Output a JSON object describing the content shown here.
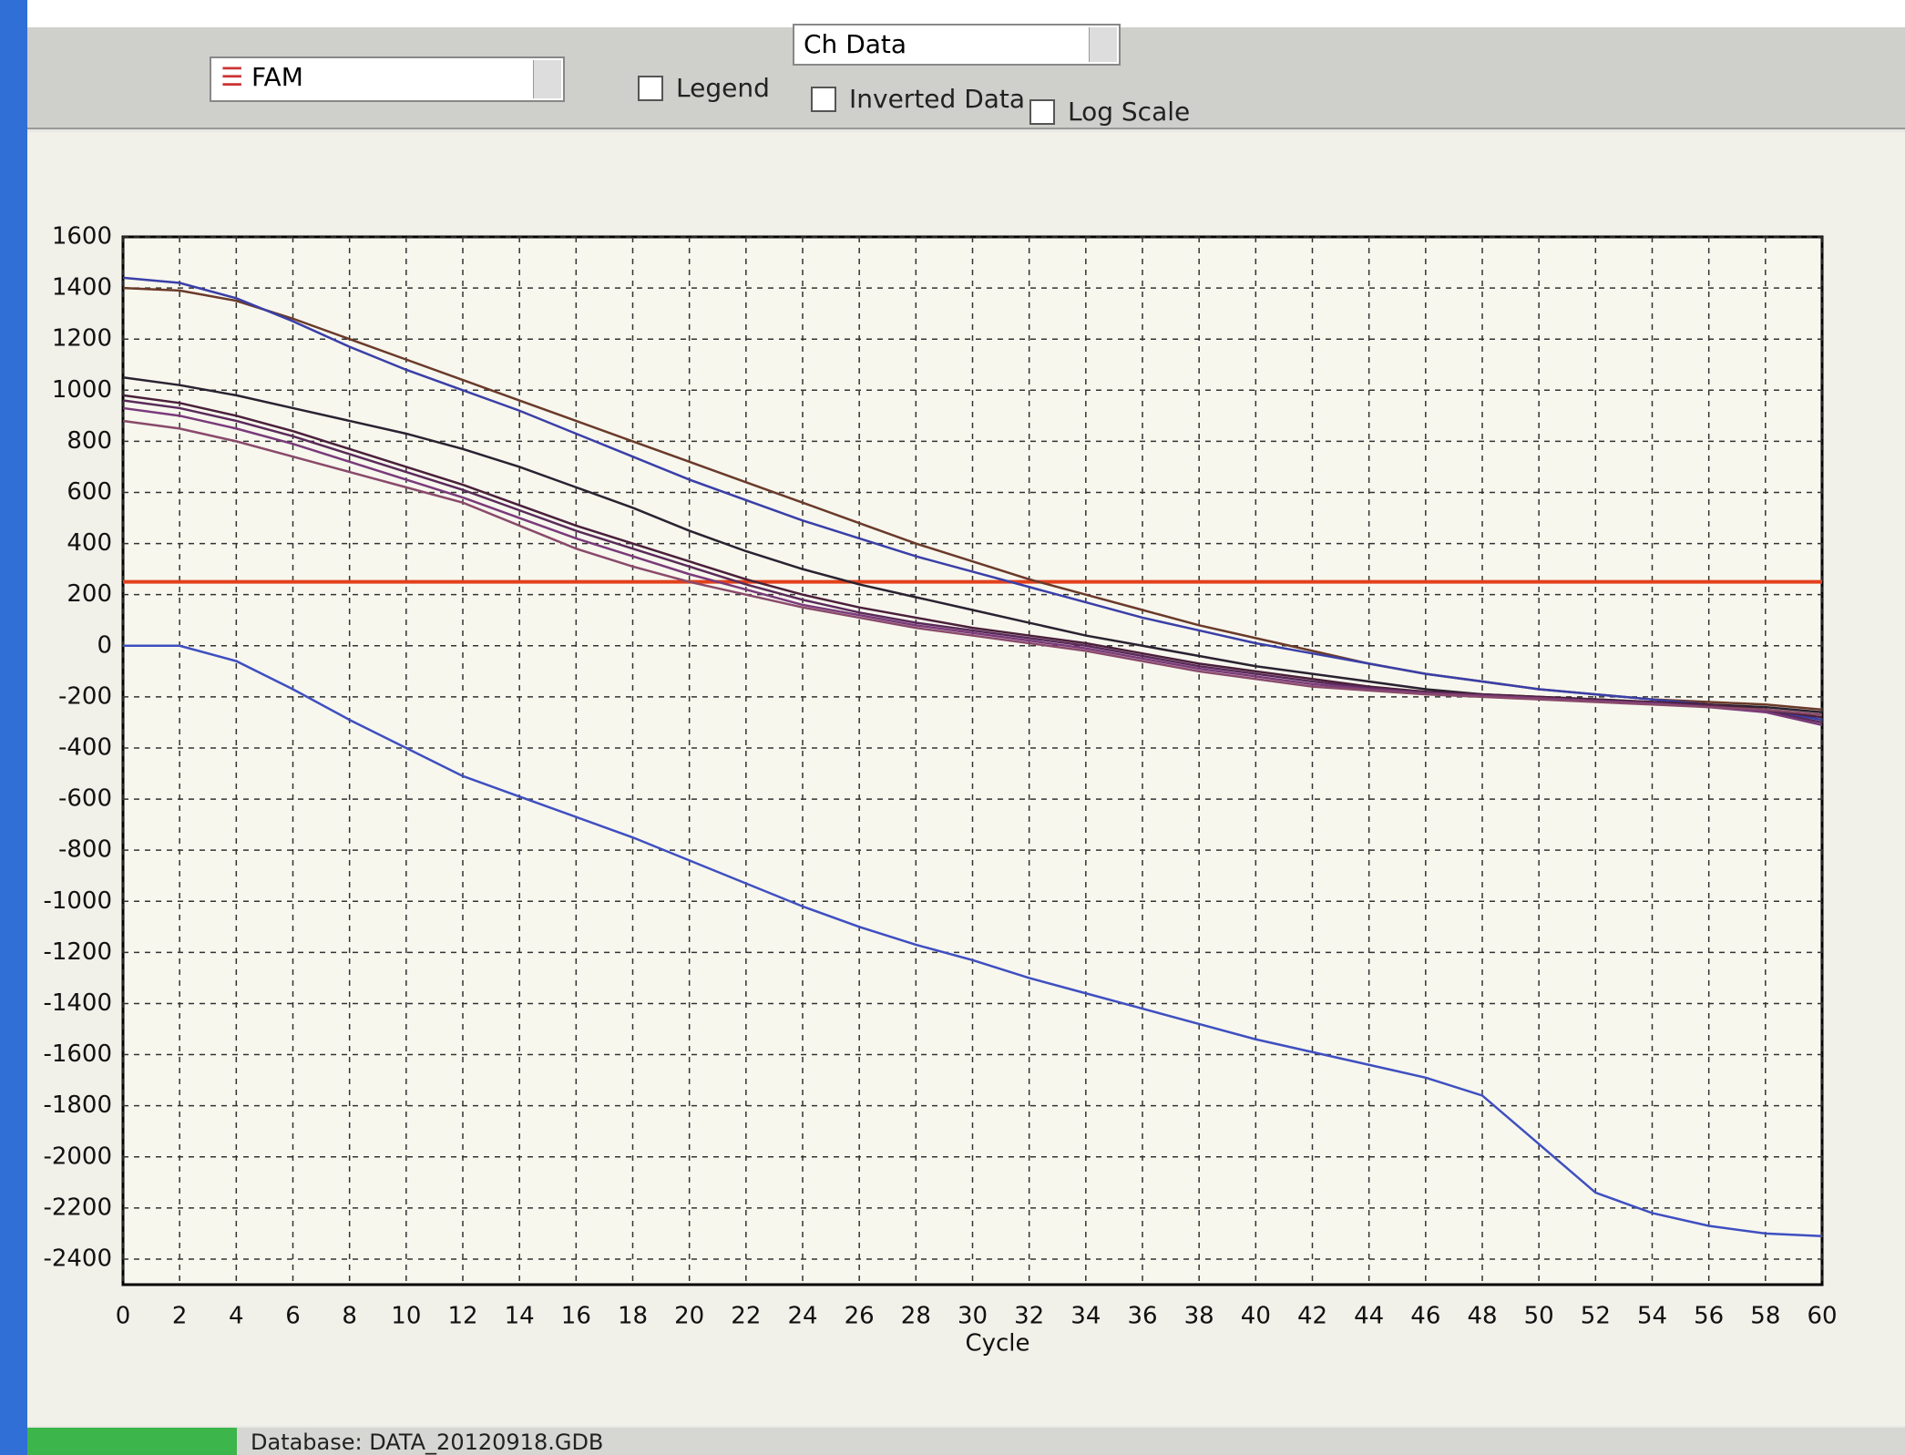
{
  "toolbar": {
    "channel": "FAM",
    "data_view": "Ch Data",
    "checkboxes": [
      "Legend",
      "Inverted Data",
      "Log Scale"
    ]
  },
  "status_bar": "Database: DATA_20120918.GDB",
  "chart_data": {
    "type": "line",
    "x_label": "Cycle",
    "x": [
      0,
      2,
      4,
      6,
      8,
      10,
      12,
      14,
      16,
      18,
      20,
      22,
      24,
      26,
      28,
      30,
      32,
      34,
      36,
      38,
      40,
      42,
      44,
      46,
      48,
      50,
      52,
      54,
      56,
      58,
      60
    ],
    "xlim": [
      0,
      60
    ],
    "xticks": [
      0,
      2,
      4,
      6,
      8,
      10,
      12,
      14,
      16,
      18,
      20,
      22,
      24,
      26,
      28,
      30,
      32,
      34,
      36,
      38,
      40,
      42,
      44,
      46,
      48,
      50,
      52,
      54,
      56,
      58,
      60
    ],
    "ylim": [
      -2500,
      1600
    ],
    "yticks": [
      -2400,
      -2200,
      -2000,
      -1800,
      -1600,
      -1400,
      -1200,
      -1000,
      -800,
      -600,
      -400,
      -200,
      0,
      200,
      400,
      600,
      800,
      1000,
      1200,
      1400,
      1600
    ],
    "grid": true,
    "threshold": {
      "value": 250,
      "color": "#e2401c"
    },
    "series": [
      {
        "color": "#6b3a2a",
        "values": [
          1400,
          1390,
          1350,
          1280,
          1200,
          1120,
          1040,
          960,
          880,
          800,
          720,
          640,
          560,
          480,
          400,
          330,
          260,
          200,
          140,
          80,
          30,
          -20,
          -70,
          -110,
          -140,
          -170,
          -190,
          -210,
          -220,
          -230,
          -250
        ]
      },
      {
        "color": "#3a3fa8",
        "values": [
          1440,
          1420,
          1360,
          1270,
          1170,
          1080,
          1000,
          920,
          830,
          740,
          650,
          570,
          490,
          420,
          350,
          290,
          230,
          170,
          110,
          60,
          10,
          -30,
          -70,
          -110,
          -140,
          -170,
          -190,
          -210,
          -230,
          -250,
          -290
        ]
      },
      {
        "color": "#2a2230",
        "values": [
          1050,
          1020,
          980,
          930,
          880,
          830,
          770,
          700,
          620,
          540,
          450,
          370,
          300,
          240,
          190,
          140,
          90,
          40,
          0,
          -40,
          -80,
          -110,
          -140,
          -170,
          -190,
          -200,
          -210,
          -220,
          -230,
          -240,
          -260
        ]
      },
      {
        "color": "#4a1f3a",
        "values": [
          980,
          950,
          900,
          840,
          770,
          700,
          630,
          550,
          470,
          400,
          330,
          260,
          200,
          150,
          110,
          70,
          40,
          10,
          -30,
          -70,
          -100,
          -130,
          -160,
          -180,
          -190,
          -200,
          -210,
          -220,
          -230,
          -250,
          -280
        ]
      },
      {
        "color": "#5a2a5a",
        "values": [
          960,
          930,
          880,
          820,
          750,
          680,
          610,
          530,
          450,
          380,
          310,
          240,
          180,
          130,
          90,
          60,
          30,
          0,
          -40,
          -80,
          -110,
          -140,
          -165,
          -185,
          -195,
          -205,
          -215,
          -225,
          -235,
          -255,
          -300
        ]
      },
      {
        "color": "#7a3a7a",
        "values": [
          930,
          900,
          850,
          790,
          720,
          650,
          580,
          500,
          420,
          350,
          280,
          220,
          160,
          120,
          80,
          50,
          20,
          -10,
          -50,
          -90,
          -120,
          -150,
          -170,
          -185,
          -195,
          -205,
          -215,
          -225,
          -240,
          -260,
          -310
        ]
      },
      {
        "color": "#8a4a6a",
        "values": [
          880,
          850,
          800,
          740,
          680,
          620,
          560,
          470,
          380,
          310,
          250,
          200,
          150,
          110,
          70,
          40,
          10,
          -20,
          -60,
          -100,
          -130,
          -160,
          -175,
          -190,
          -200,
          -210,
          -220,
          -230,
          -240,
          -250,
          -270
        ]
      },
      {
        "color": "#3f4fc0",
        "values": [
          0,
          0,
          -60,
          -170,
          -290,
          -400,
          -510,
          -590,
          -670,
          -750,
          -840,
          -930,
          -1020,
          -1100,
          -1170,
          -1230,
          -1300,
          -1360,
          -1420,
          -1480,
          -1540,
          -1590,
          -1640,
          -1690,
          -1760,
          -1950,
          -2140,
          -2220,
          -2270,
          -2300,
          -2310
        ]
      }
    ]
  }
}
